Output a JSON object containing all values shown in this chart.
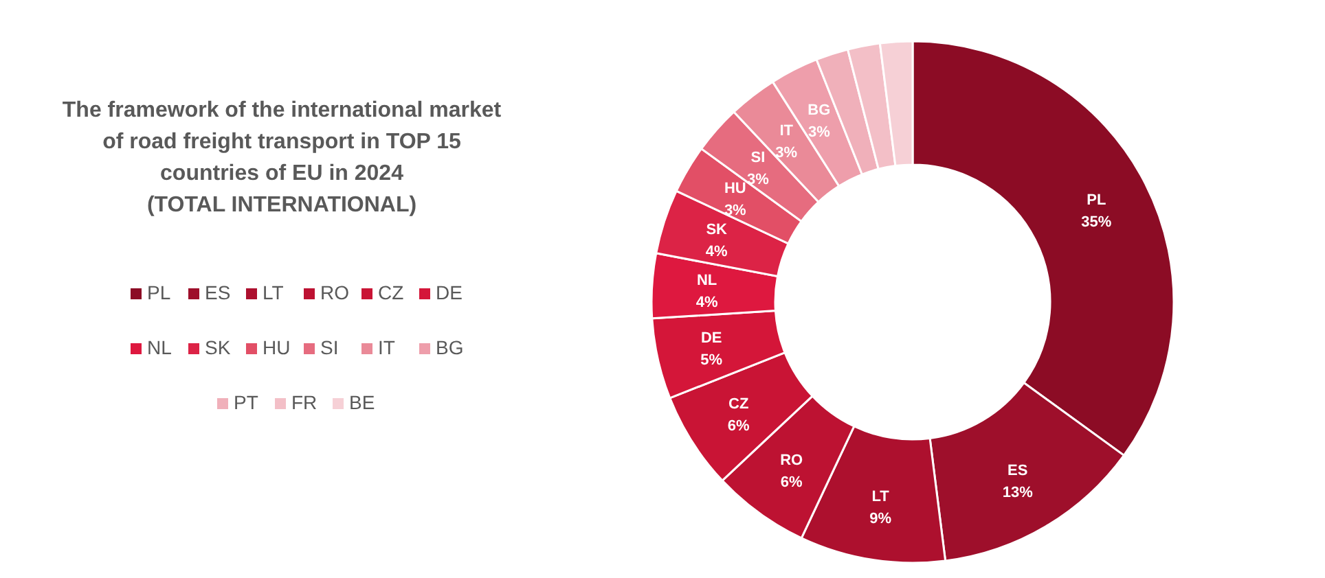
{
  "chart_data": {
    "type": "donut",
    "title": "The framework of the international market\nof road freight transport in TOP 15\ncountries of EU in 2024\n(TOTAL INTERNATIONAL)",
    "categories": [
      "PL",
      "ES",
      "LT",
      "RO",
      "CZ",
      "DE",
      "NL",
      "SK",
      "HU",
      "SI",
      "IT",
      "BG",
      "PT",
      "FR",
      "BE"
    ],
    "values": [
      35,
      13,
      9,
      6,
      6,
      5,
      4,
      4,
      3,
      3,
      3,
      3,
      2,
      2,
      2
    ],
    "value_labels": [
      "35%",
      "13%",
      "9%",
      "6%",
      "6%",
      "5%",
      "4%",
      "4%",
      "3%",
      "3%",
      "3%",
      "3%",
      null,
      null,
      null
    ],
    "colors": [
      "#8c0c25",
      "#9e0f2b",
      "#ad102e",
      "#bd1232",
      "#c91435",
      "#d41639",
      "#de183f",
      "#dc2346",
      "#e24f66",
      "#e66c7f",
      "#ea8a98",
      "#ee9eab",
      "#f0b0ba",
      "#f3bfc7",
      "#f6d0d6"
    ],
    "legend": "left"
  }
}
